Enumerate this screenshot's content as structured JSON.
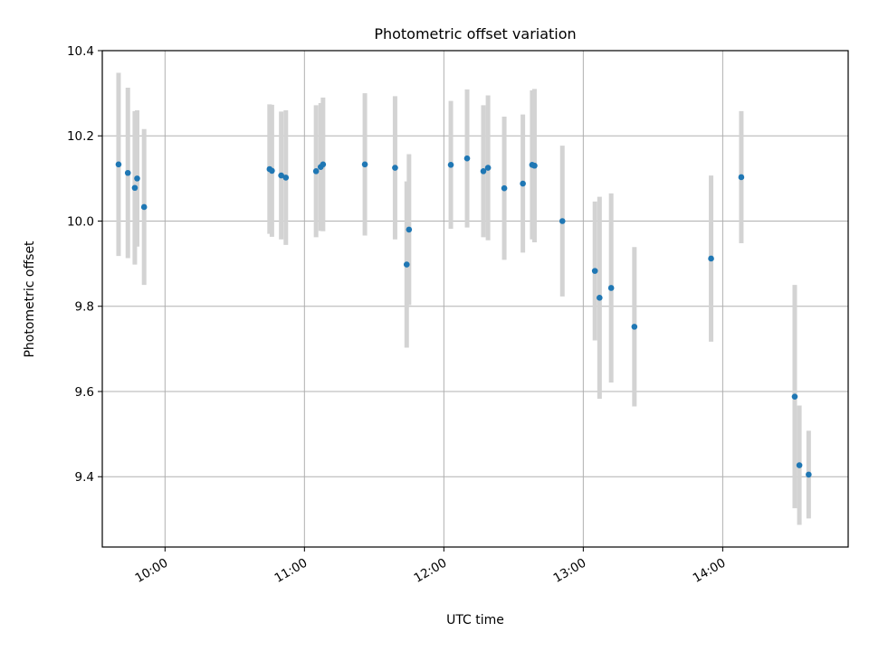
{
  "chart_data": {
    "type": "scatter",
    "title": "Photometric offset variation",
    "xlabel": "UTC time",
    "ylabel": "Photometric offset",
    "ylim": [
      9.235,
      10.4
    ],
    "xlim": [
      "09:33",
      "14:54"
    ],
    "grid": true,
    "x_tick_labels": [
      "10:00",
      "11:00",
      "12:00",
      "13:00",
      "14:00"
    ],
    "y_tick_labels": [
      "9.4",
      "9.6",
      "9.8",
      "10.0",
      "10.2",
      "10.4"
    ],
    "colors": {
      "point": "#1f77b4",
      "errorbar": "#d3d3d3"
    },
    "series": [
      {
        "points": [
          {
            "x": "09:40",
            "y": 10.133,
            "err": 0.215
          },
          {
            "x": "09:44",
            "y": 10.113,
            "err": 0.2
          },
          {
            "x": "09:47",
            "y": 10.078,
            "err": 0.18
          },
          {
            "x": "09:48",
            "y": 10.1,
            "err": 0.16
          },
          {
            "x": "09:51",
            "y": 10.033,
            "err": 0.183
          },
          {
            "x": "10:45",
            "y": 10.122,
            "err": 0.152
          },
          {
            "x": "10:46",
            "y": 10.118,
            "err": 0.155
          },
          {
            "x": "10:50",
            "y": 10.107,
            "err": 0.15
          },
          {
            "x": "10:52",
            "y": 10.102,
            "err": 0.158
          },
          {
            "x": "11:05",
            "y": 10.117,
            "err": 0.155
          },
          {
            "x": "11:07",
            "y": 10.127,
            "err": 0.15
          },
          {
            "x": "11:08",
            "y": 10.133,
            "err": 0.157
          },
          {
            "x": "11:26",
            "y": 10.133,
            "err": 0.167
          },
          {
            "x": "11:39",
            "y": 10.125,
            "err": 0.168
          },
          {
            "x": "11:44",
            "y": 9.898,
            "err": 0.195
          },
          {
            "x": "11:45",
            "y": 9.98,
            "err": 0.177
          },
          {
            "x": "12:03",
            "y": 10.132,
            "err": 0.15
          },
          {
            "x": "12:10",
            "y": 10.147,
            "err": 0.162
          },
          {
            "x": "12:17",
            "y": 10.117,
            "err": 0.155
          },
          {
            "x": "12:19",
            "y": 10.125,
            "err": 0.17
          },
          {
            "x": "12:26",
            "y": 10.077,
            "err": 0.168
          },
          {
            "x": "12:34",
            "y": 10.088,
            "err": 0.162
          },
          {
            "x": "12:38",
            "y": 10.132,
            "err": 0.175
          },
          {
            "x": "12:39",
            "y": 10.13,
            "err": 0.18
          },
          {
            "x": "12:51",
            "y": 10.0,
            "err": 0.177
          },
          {
            "x": "13:05",
            "y": 9.883,
            "err": 0.163
          },
          {
            "x": "13:07",
            "y": 9.82,
            "err": 0.237
          },
          {
            "x": "13:12",
            "y": 9.843,
            "err": 0.222
          },
          {
            "x": "13:22",
            "y": 9.752,
            "err": 0.187
          },
          {
            "x": "13:55",
            "y": 9.912,
            "err": 0.195
          },
          {
            "x": "14:08",
            "y": 10.103,
            "err": 0.155
          },
          {
            "x": "14:31",
            "y": 9.588,
            "err": 0.262
          },
          {
            "x": "14:33",
            "y": 9.427,
            "err": 0.14
          },
          {
            "x": "14:37",
            "y": 9.405,
            "err": 0.103
          }
        ]
      }
    ]
  }
}
